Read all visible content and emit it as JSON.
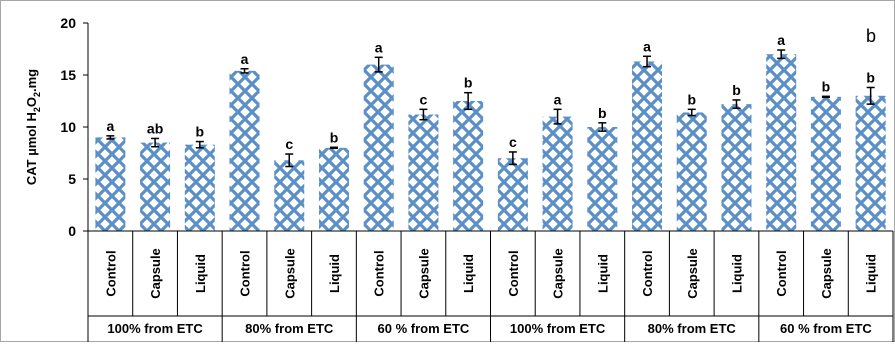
{
  "panel_label": "b",
  "chart_data": {
    "type": "bar",
    "ylabel_parts": [
      "CAT µmol H",
      "2",
      "O",
      "2",
      ".mg"
    ],
    "ylim": [
      0,
      20
    ],
    "yticks": [
      0,
      5,
      10,
      15,
      20
    ],
    "grid": false,
    "legend": "none",
    "bar_fill": "#5b8fc7",
    "groups": [
      "100% from ETC",
      "80% from ETC",
      "60 % from ETC",
      "100% from ETC",
      "80% from ETC",
      "60 % from ETC"
    ],
    "categories": [
      "Control",
      "Capsule",
      "Liquid",
      "Control",
      "Capsule",
      "Liquid",
      "Control",
      "Capsule",
      "Liquid",
      "Control",
      "Capsule",
      "Liquid",
      "Control",
      "Capsule",
      "Liquid",
      "Control",
      "Capsule",
      "Liquid"
    ],
    "values": [
      9.0,
      8.5,
      8.3,
      15.4,
      6.8,
      8.0,
      16.0,
      11.2,
      12.5,
      7.0,
      11.0,
      10.0,
      16.3,
      11.4,
      12.2,
      17.0,
      12.9,
      13.0
    ],
    "errors": [
      0.15,
      0.4,
      0.3,
      0.2,
      0.6,
      0.05,
      0.7,
      0.5,
      0.8,
      0.6,
      0.7,
      0.4,
      0.5,
      0.3,
      0.4,
      0.4,
      0.05,
      0.8
    ],
    "labels": [
      "a",
      "ab",
      "b",
      "a",
      "c",
      "b",
      "a",
      "c",
      "b",
      "c",
      "a",
      "b",
      "a",
      "b",
      "b",
      "a",
      "b",
      "b"
    ]
  }
}
